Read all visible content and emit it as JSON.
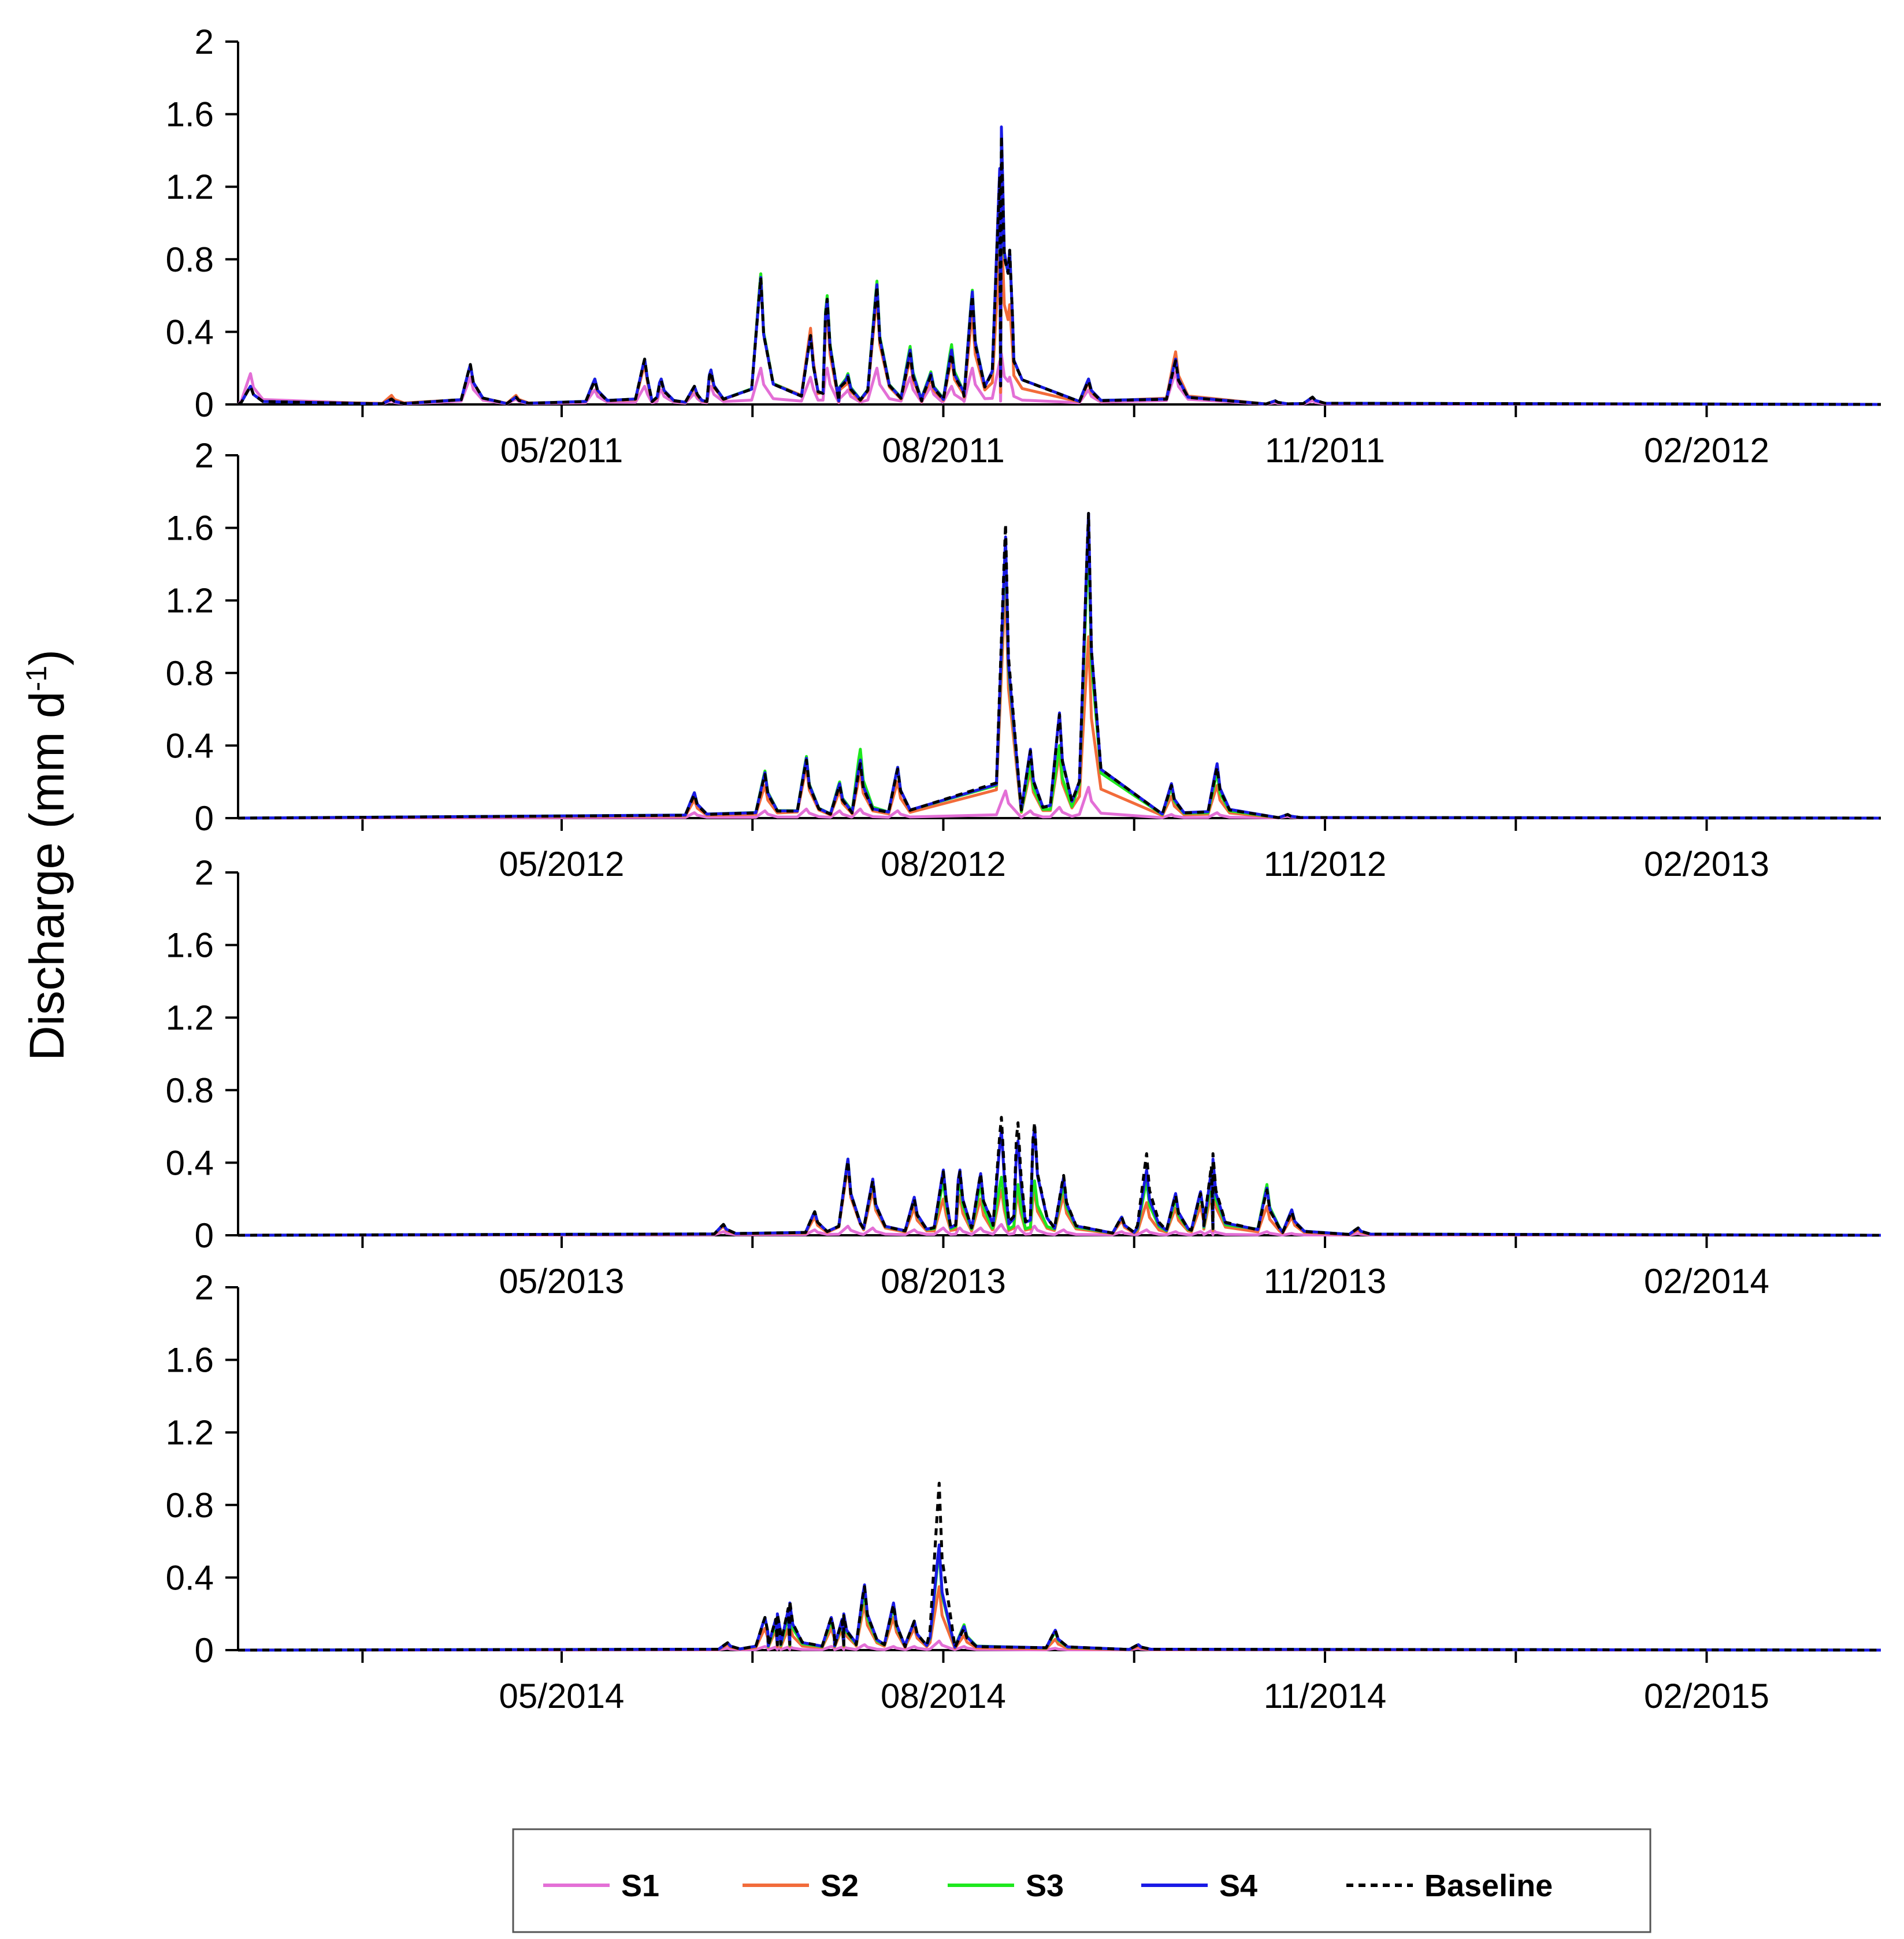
{
  "chart_data": {
    "type": "line",
    "ylabel": "Discharge (mm d",
    "ylabel_sup": "-1",
    "ylabel_close": ")",
    "y_ticks": [
      "0",
      "0.4",
      "0.8",
      "1.2",
      "1.6",
      "2"
    ],
    "ylim": [
      0,
      2
    ],
    "xlim_days": [
      0,
      396
    ],
    "legend": {
      "position": "bottom",
      "items": [
        {
          "key": "s1",
          "label": "S1"
        },
        {
          "key": "s2",
          "label": "S2"
        },
        {
          "key": "s3",
          "label": "S3"
        },
        {
          "key": "s4",
          "label": "S4"
        },
        {
          "key": "baseline",
          "label": "Baseline"
        }
      ]
    },
    "colors": {
      "s1": "#e36fd6",
      "s2": "#f26b3a",
      "s3": "#1ee81e",
      "s4": "#1a1ae6",
      "baseline": "#000000"
    },
    "panels": [
      {
        "name": "2011",
        "x_ticks": [
          {
            "day": 78,
            "label": "05/2011"
          },
          {
            "day": 170,
            "label": "08/2011"
          },
          {
            "day": 262,
            "label": "11/2011"
          },
          {
            "day": 354,
            "label": "02/2012"
          }
        ],
        "peaks": [
          {
            "day": 3,
            "v": [
              0.17,
              0.1,
              0.1,
              0.1,
              0.1
            ]
          },
          {
            "day": 37,
            "v": [
              0.02,
              0.05,
              0.03,
              0.03,
              0.03
            ]
          },
          {
            "day": 56,
            "v": [
              0.15,
              0.22,
              0.22,
              0.22,
              0.22
            ]
          },
          {
            "day": 67,
            "v": [
              0.03,
              0.05,
              0.04,
              0.04,
              0.04
            ]
          },
          {
            "day": 86,
            "v": [
              0.08,
              0.13,
              0.14,
              0.14,
              0.13
            ]
          },
          {
            "day": 98,
            "v": [
              0.1,
              0.22,
              0.25,
              0.25,
              0.25
            ]
          },
          {
            "day": 102,
            "v": [
              0.08,
              0.13,
              0.14,
              0.14,
              0.13
            ]
          },
          {
            "day": 110,
            "v": [
              0.06,
              0.09,
              0.1,
              0.1,
              0.1
            ]
          },
          {
            "day": 114,
            "v": [
              0.1,
              0.17,
              0.19,
              0.19,
              0.18
            ]
          },
          {
            "day": 126,
            "v": [
              0.2,
              0.72,
              0.72,
              0.7,
              0.7
            ]
          },
          {
            "day": 138,
            "v": [
              0.15,
              0.42,
              0.38,
              0.38,
              0.38
            ]
          },
          {
            "day": 142,
            "v": [
              0.2,
              0.5,
              0.6,
              0.58,
              0.58
            ]
          },
          {
            "day": 147,
            "v": [
              0.08,
              0.13,
              0.17,
              0.16,
              0.15
            ]
          },
          {
            "day": 154,
            "v": [
              0.2,
              0.6,
              0.68,
              0.66,
              0.65
            ]
          },
          {
            "day": 162,
            "v": [
              0.15,
              0.25,
              0.32,
              0.3,
              0.28
            ]
          },
          {
            "day": 167,
            "v": [
              0.1,
              0.14,
              0.18,
              0.17,
              0.16
            ]
          },
          {
            "day": 172,
            "v": [
              0.1,
              0.25,
              0.33,
              0.3,
              0.28
            ]
          },
          {
            "day": 177,
            "v": [
              0.2,
              0.5,
              0.63,
              0.62,
              0.6
            ]
          },
          {
            "day": 184,
            "v": [
              0.28,
              1.0,
              1.5,
              1.53,
              1.48
            ]
          },
          {
            "day": 186,
            "v": [
              0.15,
              0.55,
              0.85,
              0.85,
              0.85
            ]
          },
          {
            "day": 205,
            "v": [
              0.08,
              0.12,
              0.14,
              0.14,
              0.13
            ]
          },
          {
            "day": 226,
            "v": [
              0.18,
              0.29,
              0.25,
              0.25,
              0.24
            ]
          },
          {
            "day": 250,
            "v": [
              0.01,
              0.02,
              0.02,
              0.02,
              0.02
            ]
          },
          {
            "day": 259,
            "v": [
              0.02,
              0.04,
              0.04,
              0.04,
              0.04
            ]
          }
        ]
      },
      {
        "name": "2012",
        "x_ticks": [
          {
            "day": 78,
            "label": "05/2012"
          },
          {
            "day": 170,
            "label": "08/2012"
          },
          {
            "day": 262,
            "label": "11/2012"
          },
          {
            "day": 354,
            "label": "02/2013"
          }
        ],
        "peaks": [
          {
            "day": 110,
            "v": [
              0.03,
              0.1,
              0.14,
              0.14,
              0.13
            ]
          },
          {
            "day": 127,
            "v": [
              0.04,
              0.18,
              0.26,
              0.25,
              0.24
            ]
          },
          {
            "day": 137,
            "v": [
              0.05,
              0.28,
              0.34,
              0.33,
              0.32
            ]
          },
          {
            "day": 145,
            "v": [
              0.04,
              0.15,
              0.2,
              0.19,
              0.18
            ]
          },
          {
            "day": 150,
            "v": [
              0.05,
              0.25,
              0.38,
              0.32,
              0.3
            ]
          },
          {
            "day": 159,
            "v": [
              0.04,
              0.2,
              0.28,
              0.28,
              0.27
            ]
          },
          {
            "day": 185,
            "v": [
              0.15,
              1.3,
              1.5,
              1.55,
              1.62
            ]
          },
          {
            "day": 191,
            "v": [
              0.04,
              0.26,
              0.3,
              0.38,
              0.37
            ]
          },
          {
            "day": 198,
            "v": [
              0.06,
              0.35,
              0.4,
              0.58,
              0.57
            ]
          },
          {
            "day": 205,
            "v": [
              0.17,
              1.0,
              1.55,
              1.68,
              1.68
            ]
          },
          {
            "day": 225,
            "v": [
              0.02,
              0.12,
              0.17,
              0.19,
              0.18
            ]
          },
          {
            "day": 236,
            "v": [
              0.03,
              0.18,
              0.25,
              0.3,
              0.28
            ]
          },
          {
            "day": 253,
            "v": [
              0.01,
              0.02,
              0.02,
              0.02,
              0.02
            ]
          }
        ]
      },
      {
        "name": "2013",
        "x_ticks": [
          {
            "day": 78,
            "label": "05/2013"
          },
          {
            "day": 170,
            "label": "08/2013"
          },
          {
            "day": 262,
            "label": "11/2013"
          },
          {
            "day": 354,
            "label": "02/2014"
          }
        ],
        "peaks": [
          {
            "day": 117,
            "v": [
              0.02,
              0.05,
              0.06,
              0.06,
              0.06
            ]
          },
          {
            "day": 139,
            "v": [
              0.03,
              0.1,
              0.13,
              0.13,
              0.13
            ]
          },
          {
            "day": 147,
            "v": [
              0.05,
              0.38,
              0.42,
              0.42,
              0.41
            ]
          },
          {
            "day": 153,
            "v": [
              0.04,
              0.25,
              0.3,
              0.31,
              0.3
            ]
          },
          {
            "day": 163,
            "v": [
              0.03,
              0.15,
              0.2,
              0.21,
              0.2
            ]
          },
          {
            "day": 170,
            "v": [
              0.04,
              0.2,
              0.3,
              0.36,
              0.35
            ]
          },
          {
            "day": 174,
            "v": [
              0.04,
              0.22,
              0.3,
              0.36,
              0.35
            ]
          },
          {
            "day": 179,
            "v": [
              0.04,
              0.2,
              0.28,
              0.34,
              0.34
            ]
          },
          {
            "day": 184,
            "v": [
              0.06,
              0.25,
              0.32,
              0.58,
              0.65
            ]
          },
          {
            "day": 188,
            "v": [
              0.05,
              0.22,
              0.28,
              0.52,
              0.62
            ]
          },
          {
            "day": 192,
            "v": [
              0.05,
              0.24,
              0.3,
              0.6,
              0.62
            ]
          },
          {
            "day": 199,
            "v": [
              0.03,
              0.22,
              0.28,
              0.32,
              0.33
            ]
          },
          {
            "day": 213,
            "v": [
              0.02,
              0.08,
              0.1,
              0.1,
              0.1
            ]
          },
          {
            "day": 219,
            "v": [
              0.03,
              0.18,
              0.3,
              0.36,
              0.45
            ]
          },
          {
            "day": 226,
            "v": [
              0.02,
              0.15,
              0.2,
              0.23,
              0.22
            ]
          },
          {
            "day": 232,
            "v": [
              0.02,
              0.16,
              0.22,
              0.24,
              0.23
            ]
          },
          {
            "day": 235,
            "v": [
              0.03,
              0.28,
              0.36,
              0.42,
              0.45
            ]
          },
          {
            "day": 248,
            "v": [
              0.02,
              0.16,
              0.28,
              0.26,
              0.25
            ]
          },
          {
            "day": 254,
            "v": [
              0.01,
              0.1,
              0.14,
              0.14,
              0.13
            ]
          },
          {
            "day": 270,
            "v": [
              0.01,
              0.03,
              0.04,
              0.04,
              0.04
            ]
          }
        ]
      },
      {
        "name": "2014",
        "x_ticks": [
          {
            "day": 78,
            "label": "05/2014"
          },
          {
            "day": 170,
            "label": "08/2014"
          },
          {
            "day": 262,
            "label": "11/2014"
          },
          {
            "day": 354,
            "label": "02/2015"
          }
        ],
        "peaks": [
          {
            "day": 118,
            "v": [
              0.01,
              0.03,
              0.04,
              0.04,
              0.04
            ]
          },
          {
            "day": 127,
            "v": [
              0.02,
              0.12,
              0.18,
              0.18,
              0.18
            ]
          },
          {
            "day": 130,
            "v": [
              0.02,
              0.13,
              0.17,
              0.2,
              0.2
            ]
          },
          {
            "day": 133,
            "v": [
              0.02,
              0.14,
              0.22,
              0.26,
              0.27
            ]
          },
          {
            "day": 143,
            "v": [
              0.02,
              0.12,
              0.16,
              0.18,
              0.18
            ]
          },
          {
            "day": 146,
            "v": [
              0.02,
              0.14,
              0.18,
              0.2,
              0.19
            ]
          },
          {
            "day": 151,
            "v": [
              0.03,
              0.25,
              0.32,
              0.36,
              0.35
            ]
          },
          {
            "day": 158,
            "v": [
              0.02,
              0.18,
              0.24,
              0.26,
              0.25
            ]
          },
          {
            "day": 163,
            "v": [
              0.02,
              0.12,
              0.16,
              0.16,
              0.16
            ]
          },
          {
            "day": 169,
            "v": [
              0.05,
              0.35,
              0.55,
              0.58,
              0.92
            ]
          },
          {
            "day": 175,
            "v": [
              0.02,
              0.08,
              0.14,
              0.13,
              0.12
            ]
          },
          {
            "day": 197,
            "v": [
              0.01,
              0.06,
              0.1,
              0.11,
              0.11
            ]
          },
          {
            "day": 217,
            "v": [
              0.01,
              0.02,
              0.03,
              0.03,
              0.03
            ]
          }
        ]
      }
    ]
  }
}
